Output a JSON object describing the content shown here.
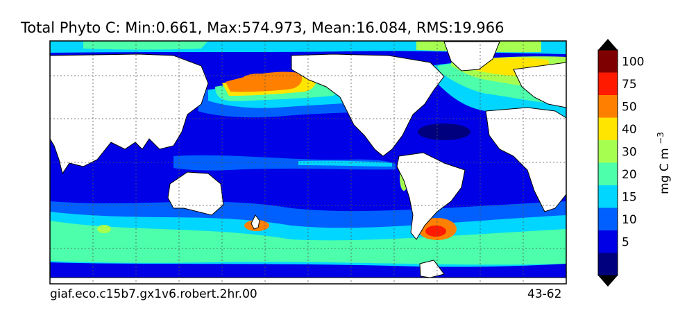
{
  "title": "Total Phyto C: Min:0.661, Max:574.973, Mean:16.084, RMS:19.966",
  "footer": {
    "left": "giaf.eco.c15b7.gx1v6.robert.2hr.00",
    "right": "43-62"
  },
  "colorbar": {
    "unit_base": "mg C m",
    "unit_exp": "−3",
    "levels": [
      {
        "label": "",
        "color": "#00007f"
      },
      {
        "label": "5",
        "color": "#0000e6"
      },
      {
        "label": "10",
        "color": "#0060ff"
      },
      {
        "label": "15",
        "color": "#00d6ff"
      },
      {
        "label": "20",
        "color": "#4dffaa"
      },
      {
        "label": "30",
        "color": "#a6ff50"
      },
      {
        "label": "40",
        "color": "#ffe500"
      },
      {
        "label": "50",
        "color": "#ff8000"
      },
      {
        "label": "75",
        "color": "#ff1a00"
      },
      {
        "label": "100",
        "color": "#7f0000"
      }
    ],
    "under_color": "#000000",
    "over_color": "#000000"
  },
  "map": {
    "projection": "equirectangular",
    "grid": true,
    "land_color": "#ffffff",
    "ocean_background": "#0060ff"
  }
}
